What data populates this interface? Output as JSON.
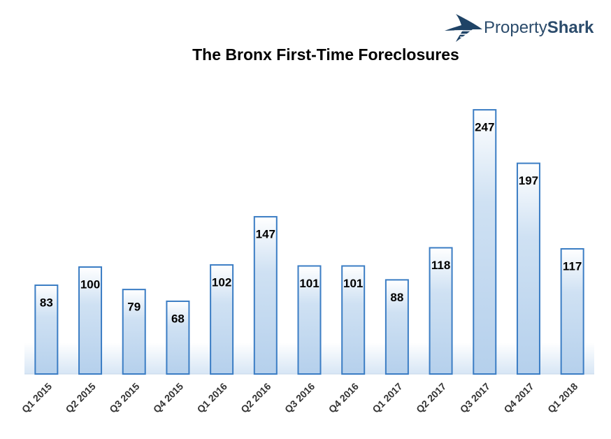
{
  "logo": {
    "prefix": "Property",
    "suffix": "Shark"
  },
  "chart_data": {
    "type": "bar",
    "title": "The Bronx First-Time Foreclosures",
    "categories": [
      "Q1 2015",
      "Q2 2015",
      "Q3 2015",
      "Q4 2015",
      "Q1 2016",
      "Q2 2016",
      "Q3 2016",
      "Q4 2016",
      "Q1 2017",
      "Q2 2017",
      "Q3 2017",
      "Q4 2017",
      "Q1 2018"
    ],
    "values": [
      83,
      100,
      79,
      68,
      102,
      147,
      101,
      101,
      88,
      118,
      247,
      197,
      117
    ],
    "color": "#3b7dc4",
    "ylim": [
      0,
      250
    ]
  }
}
